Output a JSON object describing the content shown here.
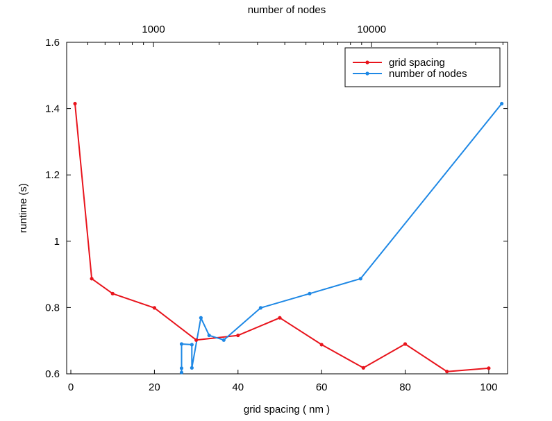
{
  "chart_data": {
    "type": "line",
    "xlabel": "grid spacing ( nm )",
    "ylabel": "runtime (s)",
    "x2label": "number of nodes",
    "xlim": [
      -1,
      104.5
    ],
    "ylim": [
      0.6,
      1.6
    ],
    "x_ticks": [
      0,
      20,
      40,
      60,
      80,
      100
    ],
    "y_ticks": [
      0.6,
      0.8,
      1,
      1.2,
      1.4,
      1.6
    ],
    "y_tick_labels": [
      "0.6",
      "0.8",
      "1",
      "1.2",
      "1.4",
      "1.6"
    ],
    "x2_scale": "log",
    "x2lim": [
      400,
      42000
    ],
    "x2_major_ticks": [
      1000,
      10000
    ],
    "x2_minor_ticks": [
      500,
      600,
      700,
      800,
      900,
      2000,
      3000,
      4000,
      5000,
      6000,
      7000,
      8000,
      9000,
      20000,
      30000,
      40000
    ],
    "legend_position": "top-right",
    "grid": false,
    "series": [
      {
        "name": "grid spacing",
        "color": "#e8141c",
        "axis": "bottom",
        "x": [
          1,
          5,
          10,
          20,
          30,
          40,
          50,
          60,
          70,
          80,
          90,
          100
        ],
        "y": [
          1.415,
          0.887,
          0.842,
          0.799,
          0.702,
          0.716,
          0.769,
          0.688,
          0.618,
          0.69,
          0.607,
          0.617
        ]
      },
      {
        "name": "number of nodes",
        "color": "#1e88e5",
        "axis": "top",
        "x": [
          1345,
          1345,
          1345,
          1500,
          1500,
          1650,
          1800,
          2100,
          3100,
          5200,
          8900,
          39500
        ],
        "y": [
          0.604,
          0.617,
          0.69,
          0.688,
          0.618,
          0.769,
          0.716,
          0.702,
          0.799,
          0.842,
          0.887,
          1.415
        ]
      }
    ]
  }
}
